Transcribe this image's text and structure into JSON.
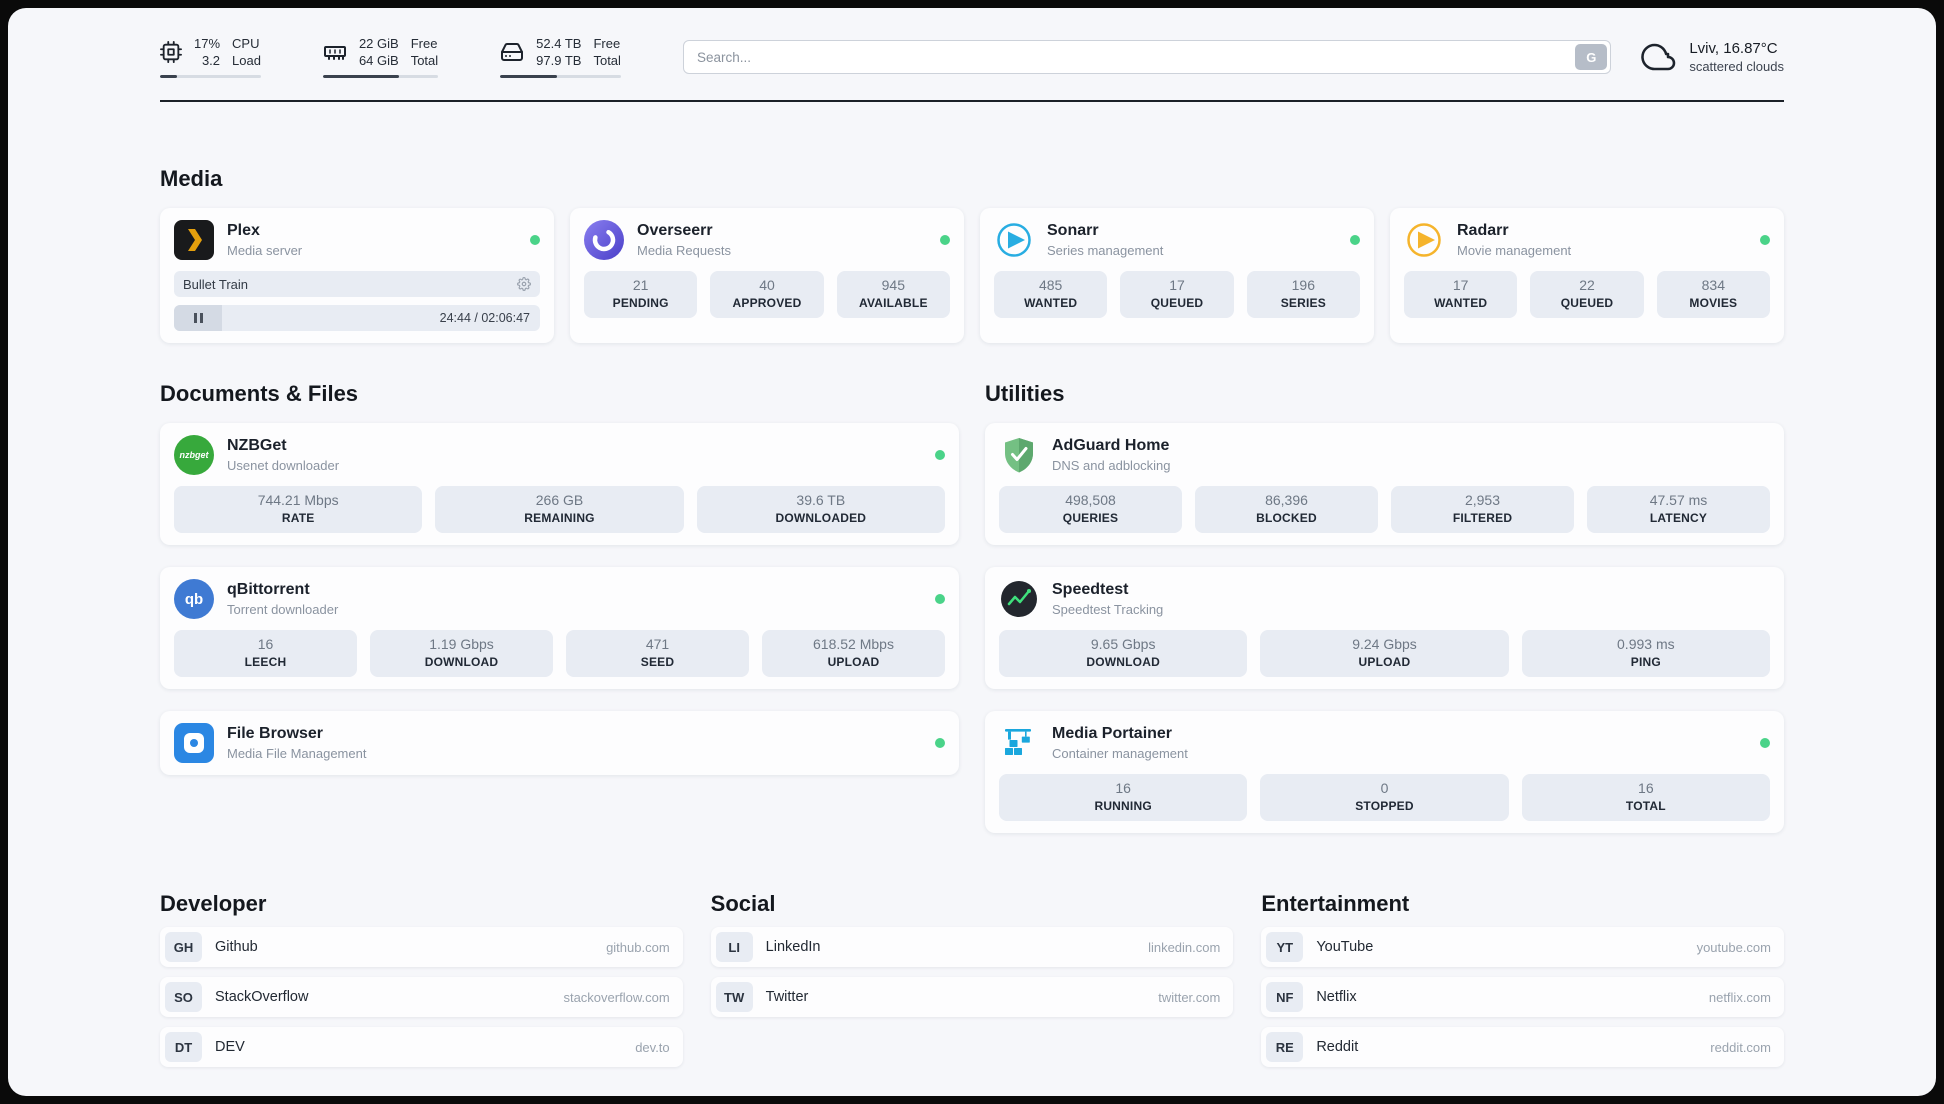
{
  "colors": {
    "status_online": "#4ad389",
    "page_bg": "#f6f7fa",
    "card_bg": "#fdfdfe",
    "stat_bg": "#e8ecf3",
    "plex_orange": "#e5a00d",
    "overseerr_purple": "#564fc5",
    "sonarr_blue": "#28ade2",
    "radarr_amber": "#f5b42c",
    "nzbget_green": "#37a93c",
    "qbittorrent_blue": "#3f7ad3",
    "filebrowser_blue": "#2b87e3",
    "adguard_green": "#67b279",
    "speedtest_dark": "#23272e",
    "speedtest_green": "#3fe07c",
    "portainer_blue": "#1aa7dd"
  },
  "header": {
    "cpu": {
      "value_top": "17%",
      "value_bottom": "3.2",
      "label_top": "CPU",
      "label_bottom": "Load",
      "bar_percent": 17
    },
    "ram": {
      "value_top": "22 GiB",
      "value_bottom": "64 GiB",
      "label_top": "Free",
      "label_bottom": "Total",
      "bar_percent": 66
    },
    "disk": {
      "value_top": "52.4 TB",
      "value_bottom": "97.9 TB",
      "label_top": "Free",
      "label_bottom": "Total",
      "bar_percent": 47
    },
    "search": {
      "placeholder": "Search...",
      "button_label": "G"
    },
    "weather": {
      "location": "Lviv, 16.87°C",
      "condition": "scattered clouds"
    }
  },
  "sections": {
    "media": "Media",
    "documents": "Documents & Files",
    "utilities": "Utilities",
    "developer": "Developer",
    "social": "Social",
    "entertainment": "Entertainment"
  },
  "apps": {
    "plex": {
      "name": "Plex",
      "subtitle": "Media server",
      "now_playing": "Bullet Train",
      "time": "24:44 / 02:06:47"
    },
    "overseerr": {
      "name": "Overseerr",
      "subtitle": "Media Requests",
      "stats": [
        {
          "value": "21",
          "label": "PENDING"
        },
        {
          "value": "40",
          "label": "APPROVED"
        },
        {
          "value": "945",
          "label": "AVAILABLE"
        }
      ]
    },
    "sonarr": {
      "name": "Sonarr",
      "subtitle": "Series management",
      "stats": [
        {
          "value": "485",
          "label": "WANTED"
        },
        {
          "value": "17",
          "label": "QUEUED"
        },
        {
          "value": "196",
          "label": "SERIES"
        }
      ]
    },
    "radarr": {
      "name": "Radarr",
      "subtitle": "Movie management",
      "stats": [
        {
          "value": "17",
          "label": "WANTED"
        },
        {
          "value": "22",
          "label": "QUEUED"
        },
        {
          "value": "834",
          "label": "MOVIES"
        }
      ]
    },
    "nzbget": {
      "name": "NZBGet",
      "subtitle": "Usenet downloader",
      "icon_text": "nzbget",
      "stats": [
        {
          "value": "744.21 Mbps",
          "label": "RATE"
        },
        {
          "value": "266 GB",
          "label": "REMAINING"
        },
        {
          "value": "39.6 TB",
          "label": "DOWNLOADED"
        }
      ]
    },
    "qbittorrent": {
      "name": "qBittorrent",
      "subtitle": "Torrent downloader",
      "icon_text": "qb",
      "stats": [
        {
          "value": "16",
          "label": "LEECH"
        },
        {
          "value": "1.19 Gbps",
          "label": "DOWNLOAD"
        },
        {
          "value": "471",
          "label": "SEED"
        },
        {
          "value": "618.52 Mbps",
          "label": "UPLOAD"
        }
      ]
    },
    "filebrowser": {
      "name": "File Browser",
      "subtitle": "Media File Management"
    },
    "adguard": {
      "name": "AdGuard Home",
      "subtitle": "DNS and adblocking",
      "stats": [
        {
          "value": "498,508",
          "label": "QUERIES"
        },
        {
          "value": "86,396",
          "label": "BLOCKED"
        },
        {
          "value": "2,953",
          "label": "FILTERED"
        },
        {
          "value": "47.57 ms",
          "label": "LATENCY"
        }
      ]
    },
    "speedtest": {
      "name": "Speedtest",
      "subtitle": "Speedtest Tracking",
      "stats": [
        {
          "value": "9.65 Gbps",
          "label": "DOWNLOAD"
        },
        {
          "value": "9.24 Gbps",
          "label": "UPLOAD"
        },
        {
          "value": "0.993 ms",
          "label": "PING"
        }
      ]
    },
    "portainer": {
      "name": "Media Portainer",
      "subtitle": "Container management",
      "stats": [
        {
          "value": "16",
          "label": "RUNNING"
        },
        {
          "value": "0",
          "label": "STOPPED"
        },
        {
          "value": "16",
          "label": "TOTAL"
        }
      ]
    }
  },
  "links": {
    "developer": [
      {
        "abbr": "GH",
        "name": "Github",
        "url": "github.com"
      },
      {
        "abbr": "SO",
        "name": "StackOverflow",
        "url": "stackoverflow.com"
      },
      {
        "abbr": "DT",
        "name": "DEV",
        "url": "dev.to"
      }
    ],
    "social": [
      {
        "abbr": "LI",
        "name": "LinkedIn",
        "url": "linkedin.com"
      },
      {
        "abbr": "TW",
        "name": "Twitter",
        "url": "twitter.com"
      }
    ],
    "entertainment": [
      {
        "abbr": "YT",
        "name": "YouTube",
        "url": "youtube.com"
      },
      {
        "abbr": "NF",
        "name": "Netflix",
        "url": "netflix.com"
      },
      {
        "abbr": "RE",
        "name": "Reddit",
        "url": "reddit.com"
      }
    ]
  }
}
